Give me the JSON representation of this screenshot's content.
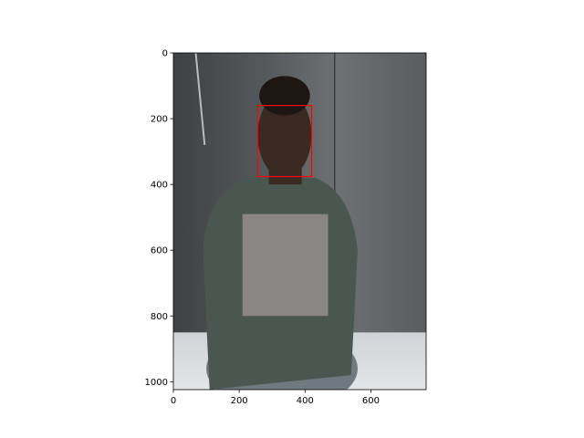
{
  "chart_data": {
    "type": "image",
    "title": "",
    "xlabel": "",
    "ylabel": "",
    "image": {
      "width": 768,
      "height": 1024,
      "subject": "person-photo"
    },
    "xlim": [
      0,
      768
    ],
    "ylim": [
      1024,
      0
    ],
    "x_ticks": [
      0,
      200,
      400,
      600
    ],
    "x_tick_labels": [
      "0",
      "200",
      "400",
      "600"
    ],
    "y_ticks": [
      0,
      200,
      400,
      600,
      800,
      1000
    ],
    "y_tick_labels": [
      "0",
      "200",
      "400",
      "600",
      "800",
      "1000"
    ],
    "grid": false,
    "annotations": [
      {
        "type": "rectangle",
        "label": "face-box",
        "x0": 256,
        "y0": 160,
        "x1": 420,
        "y1": 376,
        "color": "#ff0000"
      }
    ]
  }
}
